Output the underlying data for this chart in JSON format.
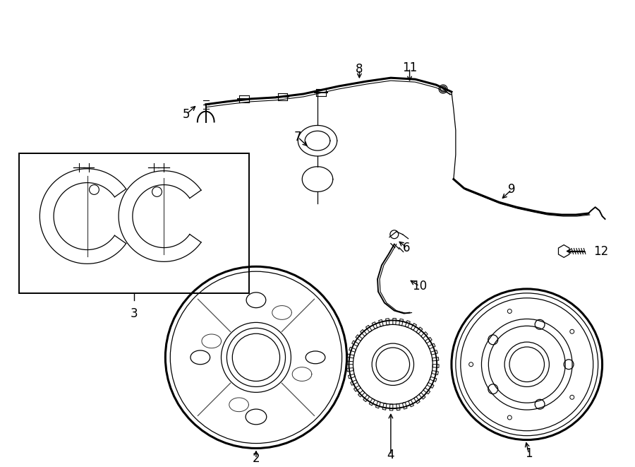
{
  "background_color": "#ffffff",
  "line_color": "#000000",
  "label_fontsize": 12
}
